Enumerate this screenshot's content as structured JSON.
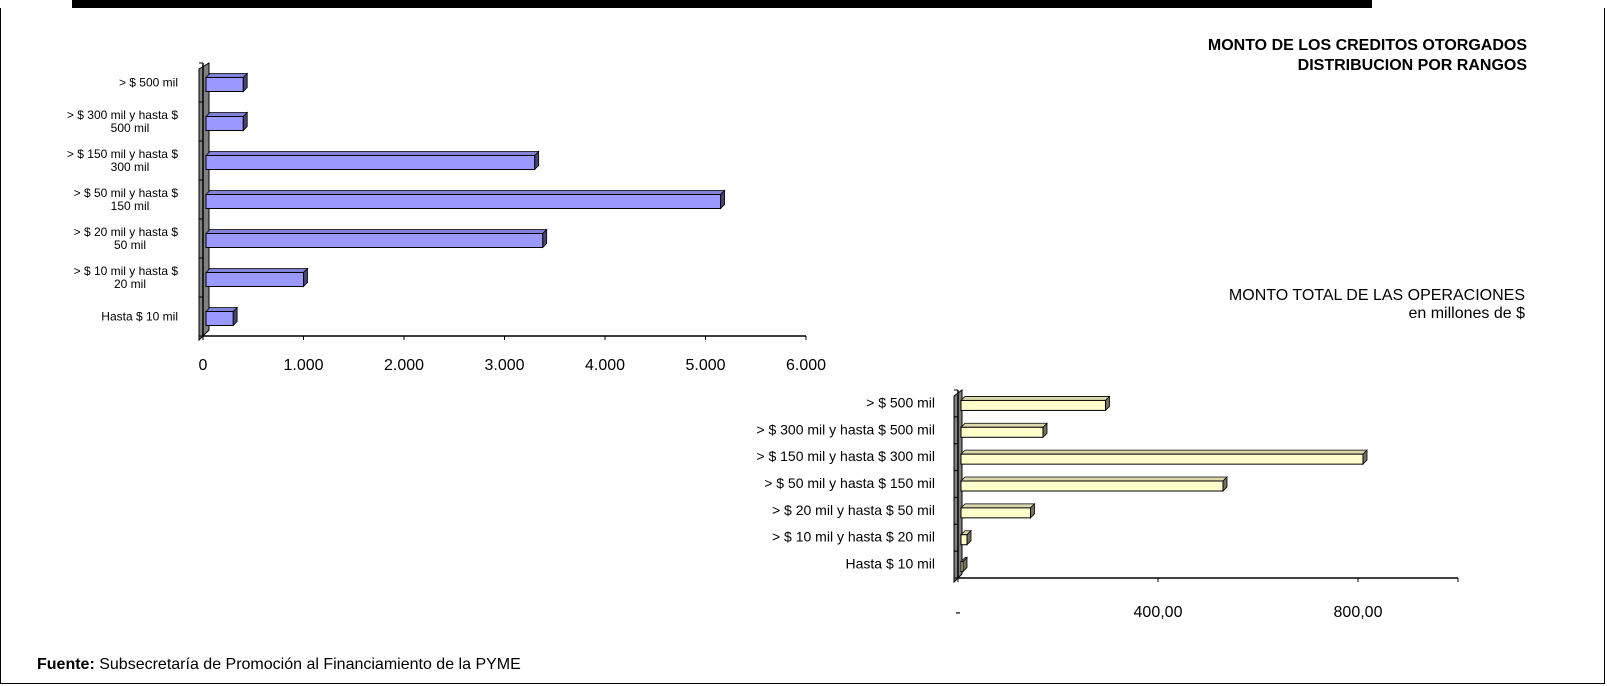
{
  "charts": {
    "top": {
      "title_line1": "MONTO DE LOS CREDITOS OTORGADOS",
      "title_line2": "DISTRIBUCION POR RANGOS"
    },
    "bottom": {
      "title_line1": "MONTO TOTAL DE LAS OPERACIONES",
      "title_line2": "en millones de $"
    }
  },
  "source": {
    "label": "Fuente:",
    "text": "Subsecretaría de Promoción al Financiamiento de la PYME"
  },
  "colors": {
    "chart1_bar": "#9999ff",
    "chart2_bar": "#ffffcc",
    "wall": "#808080"
  },
  "chart_data": [
    {
      "type": "bar",
      "orientation": "horizontal",
      "title": "MONTO DE LOS CREDITOS OTORGADOS DISTRIBUCION POR RANGOS",
      "categories": [
        "> $ 500 mil",
        "> $ 300 mil y hasta $ 500 mil",
        "> $ 150 mil y hasta $ 300 mil",
        "> $ 50 mil y hasta $ 150 mil",
        "> $ 20 mil y hasta $ 50 mil",
        "> $ 10 mil y hasta $ 20 mil",
        "Hasta $ 10 mil"
      ],
      "category_labels": [
        [
          "> $ 500 mil"
        ],
        [
          "> $ 300 mil y hasta $",
          "500 mil"
        ],
        [
          "> $ 150 mil y hasta $",
          "300 mil"
        ],
        [
          "> $ 50 mil y hasta $",
          "150 mil"
        ],
        [
          "> $ 20 mil y hasta $",
          "50 mil"
        ],
        [
          "> $ 10 mil y hasta $",
          "20 mil"
        ],
        [
          "Hasta $ 10 mil"
        ]
      ],
      "values": [
        400,
        400,
        3300,
        5150,
        3380,
        1000,
        300
      ],
      "xlim": [
        0,
        6000
      ],
      "xticks": [
        0,
        1000,
        2000,
        3000,
        4000,
        5000,
        6000
      ],
      "xtick_labels": [
        "0",
        "1.000",
        "2.000",
        "3.000",
        "4.000",
        "5.000",
        "6.000"
      ],
      "bar_color": "#9999ff",
      "grid": false,
      "legend": "none"
    },
    {
      "type": "bar",
      "orientation": "horizontal",
      "title": "MONTO TOTAL DE LAS OPERACIONES en millones de $",
      "categories": [
        "> $ 500 mil",
        "> $ 300 mil y hasta $ 500 mil",
        "> $ 150 mil y hasta $ 300 mil",
        "> $ 50 mil y hasta $ 150 mil",
        "> $ 20 mil y hasta $ 50 mil",
        "> $ 10 mil y hasta $ 20 mil",
        "Hasta $ 10 mil"
      ],
      "values": [
        295,
        170,
        810,
        530,
        145,
        18,
        6
      ],
      "xlim": [
        0,
        1000
      ],
      "xticks": [
        0,
        400,
        800
      ],
      "xtick_labels": [
        "-",
        "400,00",
        "800,00"
      ],
      "bar_color": "#ffffcc",
      "grid": false,
      "legend": "none"
    }
  ]
}
